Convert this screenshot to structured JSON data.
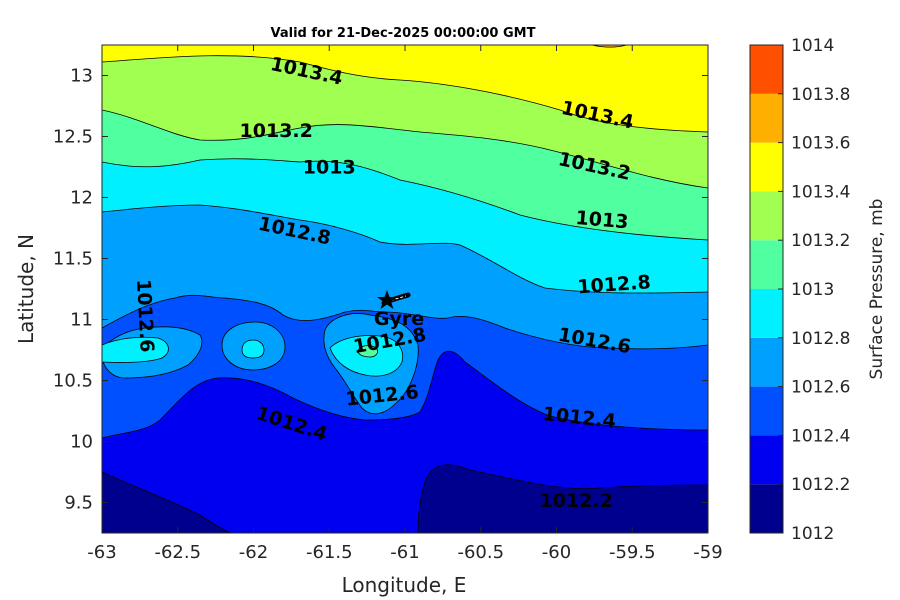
{
  "chart_data": {
    "type": "contour",
    "title": "Valid for 21-Dec-2025 00:00:00 GMT",
    "xlabel": "Longitude, E",
    "ylabel": "Latitude, N",
    "xlim": [
      -63,
      -59
    ],
    "ylim": [
      9.25,
      13.25
    ],
    "x_ticks": [
      "-63",
      "-62.5",
      "-62",
      "-61.5",
      "-61",
      "-60.5",
      "-60",
      "-59.5",
      "-59"
    ],
    "y_ticks": [
      "9.5",
      "10",
      "10.5",
      "11",
      "11.5",
      "12",
      "12.5",
      "13"
    ],
    "colorbar": {
      "label": "Surface Pressure, mb",
      "levels": [
        1012,
        1012.2,
        1012.4,
        1012.6,
        1012.8,
        1013,
        1013.2,
        1013.4,
        1013.6,
        1013.8,
        1014
      ],
      "tick_labels": [
        "1012",
        "1012.2",
        "1012.4",
        "1012.6",
        "1012.8",
        "1013",
        "1013.2",
        "1013.4",
        "1013.6",
        "1013.8",
        "1014"
      ],
      "colors": [
        "#00008f",
        "#0000f0",
        "#0050ff",
        "#00a0ff",
        "#00f0ff",
        "#50ffa0",
        "#a0ff50",
        "#ffff00",
        "#ffaf00",
        "#ff5000",
        "#ff0000"
      ]
    },
    "contour_labels": [
      {
        "text": "1013.4",
        "lon": -61.65,
        "lat": 13.03,
        "angle": 12
      },
      {
        "text": "1013.4",
        "lon": -59.73,
        "lat": 12.67,
        "angle": 12
      },
      {
        "text": "1013.2",
        "lon": -61.85,
        "lat": 12.54,
        "angle": 0
      },
      {
        "text": "1013.2",
        "lon": -59.75,
        "lat": 12.25,
        "angle": 12
      },
      {
        "text": "1013",
        "lon": -61.5,
        "lat": 12.24,
        "angle": 0
      },
      {
        "text": "1013",
        "lon": -59.7,
        "lat": 11.81,
        "angle": 5
      },
      {
        "text": "1012.8",
        "lon": -61.73,
        "lat": 11.72,
        "angle": 12
      },
      {
        "text": "1012.8",
        "lon": -59.62,
        "lat": 11.28,
        "angle": -4
      },
      {
        "text": "1012.8",
        "lon": -61.1,
        "lat": 10.82,
        "angle": -10
      },
      {
        "text": "1012.6",
        "lon": -62.72,
        "lat": 11.03,
        "angle": 87
      },
      {
        "text": "1012.6",
        "lon": -59.75,
        "lat": 10.82,
        "angle": 10
      },
      {
        "text": "1012.6",
        "lon": -61.15,
        "lat": 10.37,
        "angle": -6
      },
      {
        "text": "1012.4",
        "lon": -61.75,
        "lat": 10.14,
        "angle": 18
      },
      {
        "text": "1012.4",
        "lon": -59.85,
        "lat": 10.19,
        "angle": 6
      },
      {
        "text": "1012.2",
        "lon": -59.87,
        "lat": 9.51,
        "angle": 0
      }
    ],
    "marker": {
      "label": "Gyre",
      "lon": -61.07,
      "lat": 11.13
    }
  }
}
